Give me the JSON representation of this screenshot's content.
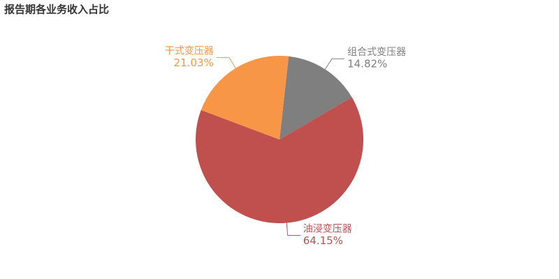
{
  "chart_data": {
    "type": "pie",
    "title": "报告期各业务收入占比",
    "categories": [
      "组合式变压器",
      "油浸变压器",
      "干式变压器"
    ],
    "values": [
      14.82,
      64.15,
      21.03
    ],
    "value_labels": [
      "14.82%",
      "64.15%",
      "21.03%"
    ],
    "colors": [
      "#7f7f7f",
      "#c0504d",
      "#f79646"
    ]
  }
}
